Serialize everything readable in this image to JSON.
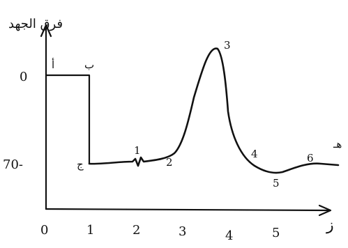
{
  "diagram": {
    "y_axis_label": "فرق الجهد",
    "x_axis_label": "ز",
    "y_ticks": [
      {
        "label": "0",
        "value": 0
      },
      {
        "label": "70-",
        "value": -70
      }
    ],
    "x_ticks": [
      {
        "label": "0",
        "value": 0
      },
      {
        "label": "1",
        "value": 1
      },
      {
        "label": "2",
        "value": 2
      },
      {
        "label": "3",
        "value": 3
      },
      {
        "label": "4",
        "value": 4
      },
      {
        "label": "5",
        "value": 5
      }
    ],
    "corner_letters": {
      "a": "أ",
      "b": "ب",
      "c": "ج",
      "end": "هـ"
    },
    "phase_numbers": [
      "1",
      "2",
      "3",
      "4",
      "5",
      "6"
    ]
  }
}
